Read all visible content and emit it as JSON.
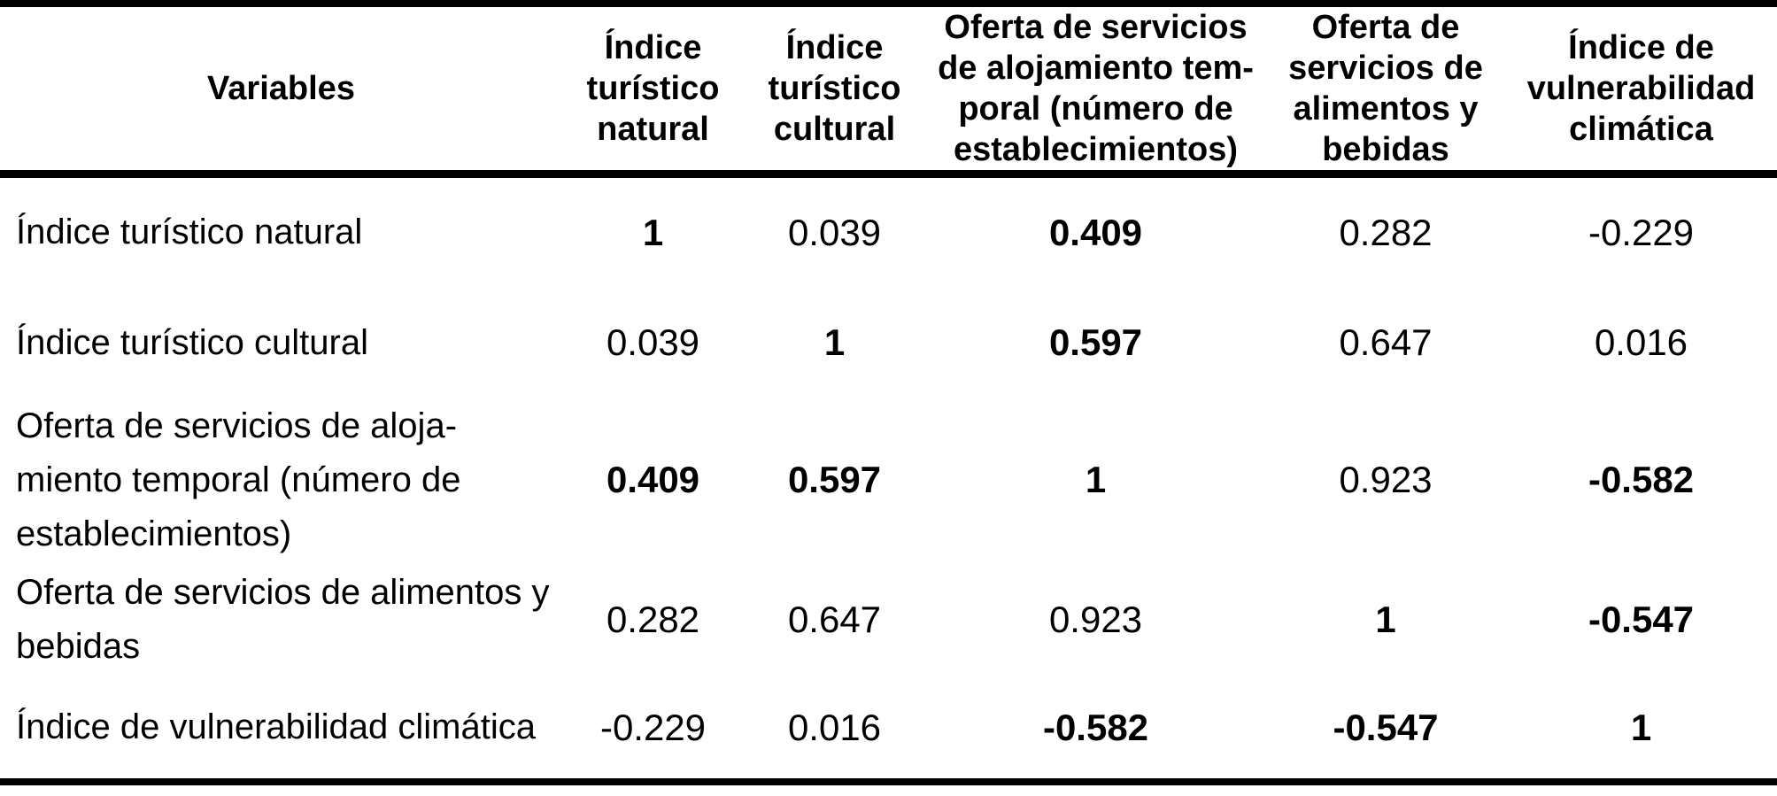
{
  "table": {
    "header": {
      "variables": "Variables",
      "cols": [
        "Índice\nturístico\nnatural",
        "Índice\nturístico\ncultural",
        "Oferta de servicios\nde alojamiento tem-\nporal (número de\nestablecimientos)",
        "Oferta de\nservicios de\nalimentos y\nbebidas",
        "Índice de\nvulnerabilidad\nclimática"
      ]
    },
    "rows": [
      {
        "label": "Índice turístico natural",
        "values": [
          "1",
          "0.039",
          "0.409",
          "0.282",
          "-0.229"
        ]
      },
      {
        "label": "Índice turístico cultural",
        "values": [
          "0.039",
          "1",
          "0.597",
          "0.647",
          "0.016"
        ]
      },
      {
        "label": "Oferta de servicios de aloja-\nmiento temporal (número de\nestablecimientos)",
        "values": [
          "0.409",
          "0.597",
          "1",
          "0.923",
          "-0.582"
        ]
      },
      {
        "label": "Oferta de servicios de alimentos y\nbebidas",
        "values": [
          "0.282",
          "0.647",
          "0.923",
          "1",
          "-0.547"
        ]
      },
      {
        "label": "Índice de vulnerabilidad climática",
        "values": [
          "-0.229",
          "0.016",
          "-0.582",
          "-0.547",
          "1"
        ]
      }
    ]
  }
}
